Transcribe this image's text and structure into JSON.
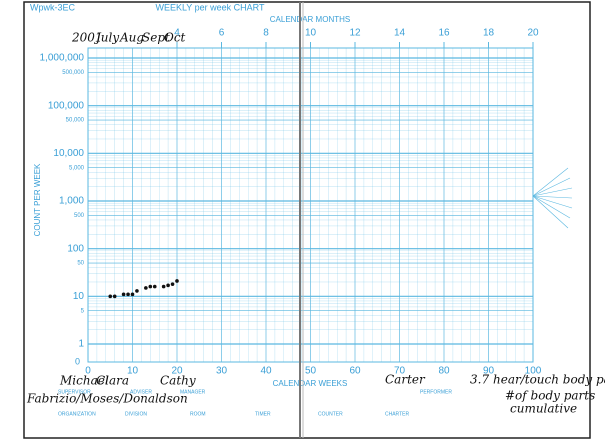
{
  "header": {
    "form_id": "Wpwk-3EC",
    "chart_name": "WEEKLY per week CHART"
  },
  "chart_data": {
    "type": "scatter",
    "xlabel": "CALENDAR WEEKS",
    "x2label": "CALENDAR MONTHS",
    "ylabel": "COUNT PER WEEK",
    "zero_label": "0",
    "x": [
      5,
      6,
      8,
      9,
      10,
      11,
      13,
      14,
      15,
      17,
      18,
      19,
      20
    ],
    "values": [
      10,
      10,
      11,
      11,
      11,
      13,
      15,
      16,
      16,
      16,
      17,
      18,
      21
    ],
    "color": "#111111",
    "xlim": [
      0,
      100
    ],
    "xticks": [
      0,
      10,
      20,
      30,
      40,
      50,
      60,
      70,
      80,
      90,
      100
    ],
    "x2lim": [
      0,
      20
    ],
    "x2ticks": [
      4,
      6,
      8,
      10,
      12,
      14,
      16,
      18,
      20
    ],
    "ylim": [
      1,
      1000000
    ],
    "yticks": [
      1,
      5,
      10,
      50,
      100,
      500,
      {
        "value": 1000,
        "label": "1,000"
      },
      {
        "value": 5000,
        "label": "5,000"
      },
      {
        "value": 10000,
        "label": "10,000"
      },
      {
        "value": 50000,
        "label": "50,000"
      },
      {
        "value": 100000,
        "label": "100,000"
      },
      {
        "value": 500000,
        "label": "500,000"
      },
      {
        "value": 1000000,
        "label": "1,000,000"
      }
    ],
    "log_y": true,
    "grid": true,
    "grid_color": "#5bb8e0"
  },
  "annotations": {
    "year": "2001",
    "months": [
      "July",
      "Aug",
      "Sept",
      "Oct"
    ],
    "supervisor": "Michael",
    "adviser": "Clara",
    "manager": "Cathy",
    "performer": "Carter",
    "organization": "Fabrizio/Moses/Donaldson",
    "rate": "3.7",
    "behavior": "hear/touch body parts",
    "count_note_1": "#of body parts",
    "count_note_2": "cumulative"
  },
  "footer_fields": [
    "SUPERVISOR",
    "ADVISER",
    "MANAGER",
    "PERFORMER",
    "ORGANIZATION",
    "DIVISION",
    "ROOM",
    "TIMER",
    "COUNTER",
    "CHARTER"
  ]
}
